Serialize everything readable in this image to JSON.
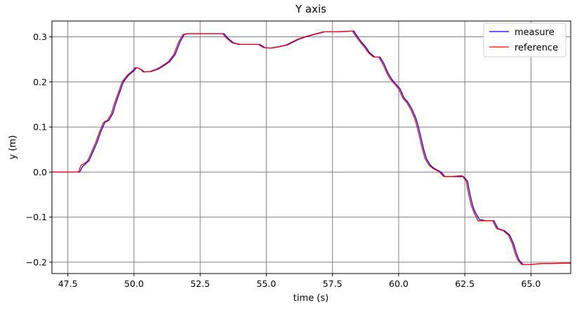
{
  "chart_data": {
    "type": "line",
    "title": "Y axis",
    "xlabel": "time (s)",
    "ylabel": "y (m)",
    "xlim": [
      46.9,
      66.5
    ],
    "ylim": [
      -0.225,
      0.335
    ],
    "xticks": [
      47.5,
      50.0,
      52.5,
      55.0,
      57.5,
      60.0,
      62.5,
      65.0
    ],
    "xtick_labels": [
      "47.5",
      "50.0",
      "52.5",
      "55.0",
      "57.5",
      "60.0",
      "62.5",
      "65.0"
    ],
    "yticks": [
      -0.2,
      -0.1,
      0.0,
      0.1,
      0.2,
      0.3
    ],
    "ytick_labels": [
      "−0.2",
      "−0.1",
      "0.0",
      "0.1",
      "0.2",
      "0.3"
    ],
    "grid": true,
    "legend_position": "top-right",
    "series": [
      {
        "name": "measure",
        "color": "#0000ff",
        "points": [
          [
            46.9,
            0.0
          ],
          [
            47.95,
            0.0
          ],
          [
            48.05,
            0.012
          ],
          [
            48.2,
            0.02
          ],
          [
            48.3,
            0.025
          ],
          [
            48.45,
            0.045
          ],
          [
            48.6,
            0.065
          ],
          [
            48.75,
            0.09
          ],
          [
            48.9,
            0.11
          ],
          [
            49.05,
            0.115
          ],
          [
            49.2,
            0.13
          ],
          [
            49.3,
            0.15
          ],
          [
            49.45,
            0.175
          ],
          [
            49.6,
            0.2
          ],
          [
            49.8,
            0.215
          ],
          [
            50.0,
            0.225
          ],
          [
            50.1,
            0.232
          ],
          [
            50.25,
            0.228
          ],
          [
            50.4,
            0.222
          ],
          [
            50.65,
            0.223
          ],
          [
            50.9,
            0.228
          ],
          [
            51.1,
            0.235
          ],
          [
            51.35,
            0.245
          ],
          [
            51.55,
            0.26
          ],
          [
            51.75,
            0.29
          ],
          [
            51.9,
            0.305
          ],
          [
            52.05,
            0.307
          ],
          [
            52.5,
            0.307
          ],
          [
            53.0,
            0.307
          ],
          [
            53.4,
            0.307
          ],
          [
            53.55,
            0.297
          ],
          [
            53.75,
            0.287
          ],
          [
            54.0,
            0.283
          ],
          [
            54.5,
            0.283
          ],
          [
            54.75,
            0.283
          ],
          [
            54.95,
            0.276
          ],
          [
            55.2,
            0.275
          ],
          [
            55.5,
            0.278
          ],
          [
            55.8,
            0.282
          ],
          [
            56.0,
            0.288
          ],
          [
            56.25,
            0.295
          ],
          [
            56.5,
            0.3
          ],
          [
            56.8,
            0.305
          ],
          [
            57.0,
            0.308
          ],
          [
            57.2,
            0.311
          ],
          [
            57.7,
            0.311
          ],
          [
            58.0,
            0.312
          ],
          [
            58.3,
            0.313
          ],
          [
            58.45,
            0.3
          ],
          [
            58.6,
            0.288
          ],
          [
            58.75,
            0.278
          ],
          [
            58.9,
            0.265
          ],
          [
            59.1,
            0.255
          ],
          [
            59.3,
            0.255
          ],
          [
            59.45,
            0.24
          ],
          [
            59.6,
            0.22
          ],
          [
            59.75,
            0.205
          ],
          [
            59.9,
            0.195
          ],
          [
            60.05,
            0.185
          ],
          [
            60.2,
            0.165
          ],
          [
            60.35,
            0.155
          ],
          [
            60.5,
            0.14
          ],
          [
            60.65,
            0.12
          ],
          [
            60.75,
            0.1
          ],
          [
            60.85,
            0.075
          ],
          [
            60.95,
            0.05
          ],
          [
            61.05,
            0.03
          ],
          [
            61.2,
            0.015
          ],
          [
            61.35,
            0.008
          ],
          [
            61.6,
            0.0
          ],
          [
            61.75,
            -0.01
          ],
          [
            62.0,
            -0.01
          ],
          [
            62.45,
            -0.01
          ],
          [
            62.6,
            -0.02
          ],
          [
            62.7,
            -0.05
          ],
          [
            62.8,
            -0.075
          ],
          [
            62.9,
            -0.09
          ],
          [
            63.05,
            -0.105
          ],
          [
            63.3,
            -0.108
          ],
          [
            63.6,
            -0.108
          ],
          [
            63.75,
            -0.125
          ],
          [
            64.0,
            -0.13
          ],
          [
            64.2,
            -0.14
          ],
          [
            64.35,
            -0.16
          ],
          [
            64.45,
            -0.18
          ],
          [
            64.55,
            -0.195
          ],
          [
            64.7,
            -0.205
          ],
          [
            65.0,
            -0.205
          ],
          [
            65.4,
            -0.203
          ],
          [
            66.5,
            -0.202
          ]
        ]
      },
      {
        "name": "reference",
        "color": "#ff0000",
        "points": [
          [
            46.9,
            0.0
          ],
          [
            47.9,
            0.0
          ],
          [
            48.0,
            0.015
          ],
          [
            48.15,
            0.02
          ],
          [
            48.25,
            0.025
          ],
          [
            48.4,
            0.045
          ],
          [
            48.55,
            0.065
          ],
          [
            48.7,
            0.09
          ],
          [
            48.85,
            0.11
          ],
          [
            49.0,
            0.115
          ],
          [
            49.15,
            0.13
          ],
          [
            49.25,
            0.15
          ],
          [
            49.4,
            0.175
          ],
          [
            49.55,
            0.2
          ],
          [
            49.75,
            0.215
          ],
          [
            49.95,
            0.225
          ],
          [
            50.05,
            0.232
          ],
          [
            50.2,
            0.23
          ],
          [
            50.35,
            0.222
          ],
          [
            50.6,
            0.223
          ],
          [
            50.85,
            0.228
          ],
          [
            51.05,
            0.235
          ],
          [
            51.3,
            0.245
          ],
          [
            51.5,
            0.26
          ],
          [
            51.7,
            0.29
          ],
          [
            51.85,
            0.305
          ],
          [
            52.0,
            0.307
          ],
          [
            52.5,
            0.307
          ],
          [
            53.0,
            0.307
          ],
          [
            53.35,
            0.307
          ],
          [
            53.5,
            0.297
          ],
          [
            53.7,
            0.287
          ],
          [
            53.95,
            0.283
          ],
          [
            54.5,
            0.283
          ],
          [
            54.7,
            0.283
          ],
          [
            54.9,
            0.276
          ],
          [
            55.15,
            0.275
          ],
          [
            55.45,
            0.278
          ],
          [
            55.75,
            0.282
          ],
          [
            55.95,
            0.288
          ],
          [
            56.2,
            0.295
          ],
          [
            56.45,
            0.3
          ],
          [
            56.75,
            0.305
          ],
          [
            56.95,
            0.308
          ],
          [
            57.15,
            0.311
          ],
          [
            57.65,
            0.311
          ],
          [
            57.95,
            0.312
          ],
          [
            58.25,
            0.313
          ],
          [
            58.4,
            0.3
          ],
          [
            58.55,
            0.288
          ],
          [
            58.7,
            0.278
          ],
          [
            58.85,
            0.265
          ],
          [
            59.05,
            0.255
          ],
          [
            59.25,
            0.255
          ],
          [
            59.4,
            0.24
          ],
          [
            59.55,
            0.22
          ],
          [
            59.7,
            0.205
          ],
          [
            59.85,
            0.195
          ],
          [
            60.0,
            0.185
          ],
          [
            60.15,
            0.165
          ],
          [
            60.3,
            0.155
          ],
          [
            60.45,
            0.14
          ],
          [
            60.6,
            0.12
          ],
          [
            60.7,
            0.1
          ],
          [
            60.8,
            0.075
          ],
          [
            60.9,
            0.05
          ],
          [
            61.0,
            0.03
          ],
          [
            61.15,
            0.015
          ],
          [
            61.3,
            0.008
          ],
          [
            61.55,
            0.0
          ],
          [
            61.7,
            -0.01
          ],
          [
            61.95,
            -0.01
          ],
          [
            62.4,
            -0.008
          ],
          [
            62.55,
            -0.02
          ],
          [
            62.65,
            -0.05
          ],
          [
            62.75,
            -0.075
          ],
          [
            62.85,
            -0.09
          ],
          [
            63.0,
            -0.108
          ],
          [
            63.25,
            -0.108
          ],
          [
            63.55,
            -0.108
          ],
          [
            63.7,
            -0.125
          ],
          [
            63.95,
            -0.13
          ],
          [
            64.15,
            -0.14
          ],
          [
            64.3,
            -0.16
          ],
          [
            64.4,
            -0.18
          ],
          [
            64.5,
            -0.195
          ],
          [
            64.65,
            -0.205
          ],
          [
            65.0,
            -0.205
          ],
          [
            65.35,
            -0.203
          ],
          [
            66.5,
            -0.202
          ]
        ]
      }
    ]
  }
}
